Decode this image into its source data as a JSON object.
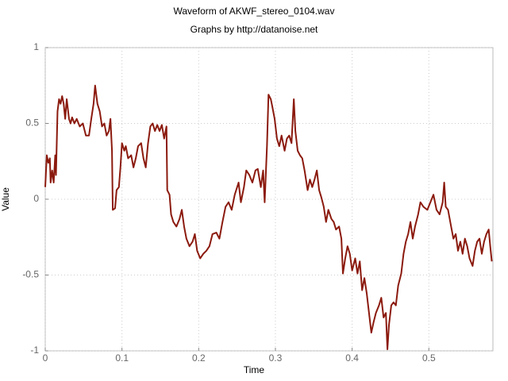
{
  "chart_data": {
    "type": "line",
    "title": "Waveform of AKWF_stereo_0104.wav",
    "subtitle": "Graphs by http://datanoise.net",
    "x_label": "Time",
    "y_label": "Value",
    "xlim": [
      0,
      0.5835
    ],
    "ylim": [
      -1,
      1
    ],
    "xticks": [
      0,
      0.1,
      0.2,
      0.3,
      0.4,
      0.5
    ],
    "yticks": [
      -1,
      -0.5,
      0,
      0.5,
      1
    ],
    "grid": true,
    "color": "#8b1a0e",
    "x": [
      0,
      0.002,
      0.004,
      0.006,
      0.007,
      0.009,
      0.011,
      0.013,
      0.014,
      0.016,
      0.018,
      0.02,
      0.022,
      0.024,
      0.026,
      0.028,
      0.031,
      0.033,
      0.035,
      0.038,
      0.041,
      0.045,
      0.049,
      0.053,
      0.057,
      0.06,
      0.063,
      0.065,
      0.068,
      0.071,
      0.074,
      0.077,
      0.08,
      0.083,
      0.085,
      0.087,
      0.088,
      0.091,
      0.093,
      0.096,
      0.098,
      0.1,
      0.103,
      0.105,
      0.108,
      0.112,
      0.115,
      0.118,
      0.121,
      0.125,
      0.128,
      0.131,
      0.134,
      0.137,
      0.14,
      0.143,
      0.146,
      0.149,
      0.152,
      0.155,
      0.158,
      0.159,
      0.162,
      0.164,
      0.167,
      0.171,
      0.175,
      0.178,
      0.181,
      0.184,
      0.188,
      0.192,
      0.195,
      0.198,
      0.202,
      0.206,
      0.21,
      0.214,
      0.218,
      0.223,
      0.227,
      0.231,
      0.235,
      0.239,
      0.243,
      0.247,
      0.252,
      0.255,
      0.259,
      0.262,
      0.266,
      0.27,
      0.274,
      0.277,
      0.281,
      0.284,
      0.286,
      0.289,
      0.291,
      0.294,
      0.296,
      0.299,
      0.302,
      0.305,
      0.308,
      0.312,
      0.315,
      0.318,
      0.321,
      0.324,
      0.326,
      0.329,
      0.332,
      0.335,
      0.338,
      0.342,
      0.345,
      0.348,
      0.351,
      0.354,
      0.357,
      0.36,
      0.363,
      0.366,
      0.369,
      0.373,
      0.376,
      0.379,
      0.383,
      0.386,
      0.388,
      0.391,
      0.394,
      0.397,
      0.4,
      0.404,
      0.407,
      0.41,
      0.413,
      0.416,
      0.419,
      0.422,
      0.425,
      0.428,
      0.431,
      0.435,
      0.438,
      0.441,
      0.444,
      0.446,
      0.448,
      0.451,
      0.454,
      0.457,
      0.46,
      0.464,
      0.467,
      0.47,
      0.473,
      0.476,
      0.479,
      0.482,
      0.486,
      0.489,
      0.493,
      0.498,
      0.502,
      0.506,
      0.51,
      0.514,
      0.518,
      0.52,
      0.522,
      0.525,
      0.529,
      0.532,
      0.535,
      0.538,
      0.541,
      0.544,
      0.547,
      0.55,
      0.553,
      0.557,
      0.56,
      0.563,
      0.566,
      0.569,
      0.572,
      0.575,
      0.578,
      0.58,
      0.582
    ],
    "values": [
      0.08,
      0.29,
      0.24,
      0.27,
      0.11,
      0.19,
      0.11,
      0.29,
      0.16,
      0.58,
      0.66,
      0.63,
      0.68,
      0.63,
      0.53,
      0.66,
      0.53,
      0.5,
      0.54,
      0.5,
      0.53,
      0.48,
      0.5,
      0.42,
      0.42,
      0.53,
      0.63,
      0.75,
      0.63,
      0.58,
      0.48,
      0.5,
      0.42,
      0.45,
      0.53,
      0.32,
      -0.07,
      -0.06,
      0.06,
      0.08,
      0.21,
      0.37,
      0.32,
      0.35,
      0.27,
      0.29,
      0.21,
      0.27,
      0.35,
      0.37,
      0.27,
      0.21,
      0.37,
      0.48,
      0.5,
      0.45,
      0.49,
      0.45,
      0.49,
      0.4,
      0.48,
      0.06,
      0.03,
      -0.1,
      -0.15,
      -0.18,
      -0.13,
      -0.07,
      -0.18,
      -0.26,
      -0.31,
      -0.28,
      -0.23,
      -0.34,
      -0.39,
      -0.36,
      -0.34,
      -0.31,
      -0.23,
      -0.22,
      -0.26,
      -0.15,
      -0.05,
      -0.02,
      -0.07,
      0.03,
      0.11,
      -0.02,
      0.08,
      0.19,
      0.16,
      0.11,
      0.19,
      0.2,
      0.08,
      0.19,
      -0.02,
      0.35,
      0.69,
      0.66,
      0.61,
      0.53,
      0.4,
      0.35,
      0.42,
      0.32,
      0.4,
      0.42,
      0.37,
      0.66,
      0.45,
      0.32,
      0.29,
      0.27,
      0.19,
      0.06,
      0.13,
      0.08,
      0.13,
      0.19,
      0.06,
      0.01,
      -0.05,
      -0.15,
      -0.07,
      -0.13,
      -0.15,
      -0.2,
      -0.18,
      -0.26,
      -0.49,
      -0.39,
      -0.31,
      -0.36,
      -0.47,
      -0.39,
      -0.49,
      -0.41,
      -0.6,
      -0.52,
      -0.62,
      -0.75,
      -0.88,
      -0.81,
      -0.75,
      -0.7,
      -0.65,
      -0.78,
      -0.75,
      -0.99,
      -0.83,
      -0.7,
      -0.68,
      -0.7,
      -0.57,
      -0.49,
      -0.36,
      -0.28,
      -0.23,
      -0.15,
      -0.26,
      -0.18,
      -0.1,
      -0.02,
      -0.05,
      -0.07,
      -0.02,
      0.03,
      -0.07,
      -0.1,
      -0.02,
      0.11,
      -0.05,
      -0.07,
      -0.18,
      -0.26,
      -0.23,
      -0.34,
      -0.28,
      -0.36,
      -0.26,
      -0.31,
      -0.39,
      -0.44,
      -0.34,
      -0.28,
      -0.26,
      -0.36,
      -0.28,
      -0.23,
      -0.2,
      -0.31,
      -0.41
    ]
  }
}
